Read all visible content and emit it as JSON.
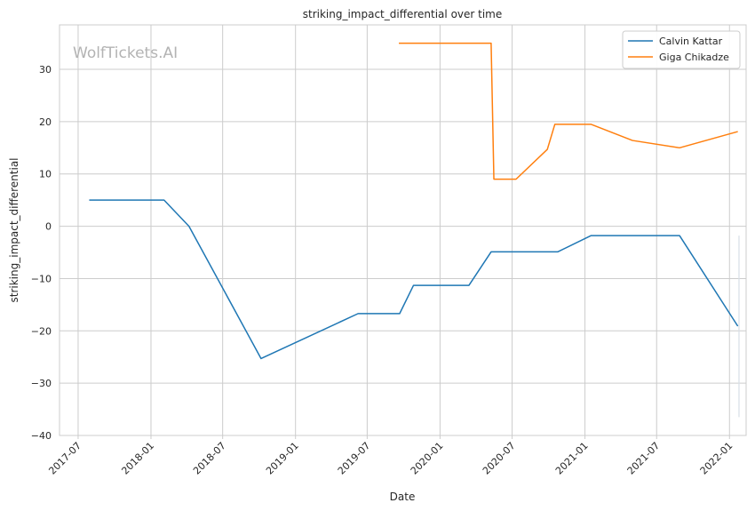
{
  "chart_data": {
    "type": "line",
    "title": "striking_impact_differential over time",
    "xlabel": "Date",
    "ylabel": "striking_impact_differential",
    "watermark": "WolfTickets.AI",
    "xlim": [
      "2017-05-15",
      "2022-02-12"
    ],
    "ylim": [
      -40,
      38.5
    ],
    "x_ticks": [
      "2017-07",
      "2018-01",
      "2018-07",
      "2019-01",
      "2019-07",
      "2020-01",
      "2020-07",
      "2021-01",
      "2021-07",
      "2022-01"
    ],
    "y_ticks": [
      -40,
      -30,
      -20,
      -10,
      0,
      10,
      20,
      30
    ],
    "grid": true,
    "legend_position": "top-right",
    "series": [
      {
        "name": "Calvin Kattar",
        "color": "#1f77b4",
        "points": [
          {
            "x": "2017-07-29",
            "y": 5
          },
          {
            "x": "2018-02-03",
            "y": 5
          },
          {
            "x": "2018-04-07",
            "y": 0
          },
          {
            "x": "2018-10-06",
            "y": -25.3
          },
          {
            "x": "2019-06-08",
            "y": -16.7
          },
          {
            "x": "2019-09-21",
            "y": -16.7
          },
          {
            "x": "2019-10-26",
            "y": -11.3
          },
          {
            "x": "2020-03-14",
            "y": -11.3
          },
          {
            "x": "2020-05-09",
            "y": -4.9
          },
          {
            "x": "2020-10-24",
            "y": -4.9
          },
          {
            "x": "2021-01-16",
            "y": -1.8
          },
          {
            "x": "2021-08-28",
            "y": -1.8
          },
          {
            "x": "2022-01-22",
            "y": -19.1
          }
        ]
      },
      {
        "name": "Giga Chikadze",
        "color": "#ff7f0e",
        "points": [
          {
            "x": "2019-09-19",
            "y": 35
          },
          {
            "x": "2020-05-09",
            "y": 35
          },
          {
            "x": "2020-05-16",
            "y": 9
          },
          {
            "x": "2020-07-11",
            "y": 9
          },
          {
            "x": "2020-09-28",
            "y": 14.7
          },
          {
            "x": "2020-10-17",
            "y": 19.5
          },
          {
            "x": "2021-01-16",
            "y": 19.5
          },
          {
            "x": "2021-05-01",
            "y": 16.4
          },
          {
            "x": "2021-08-28",
            "y": 15
          },
          {
            "x": "2022-01-22",
            "y": 18.1
          }
        ]
      }
    ],
    "vertical_band": {
      "x": "2022-01-25",
      "y_range": [
        -36.5,
        -1.8
      ],
      "color": "#d7dfe6"
    }
  }
}
